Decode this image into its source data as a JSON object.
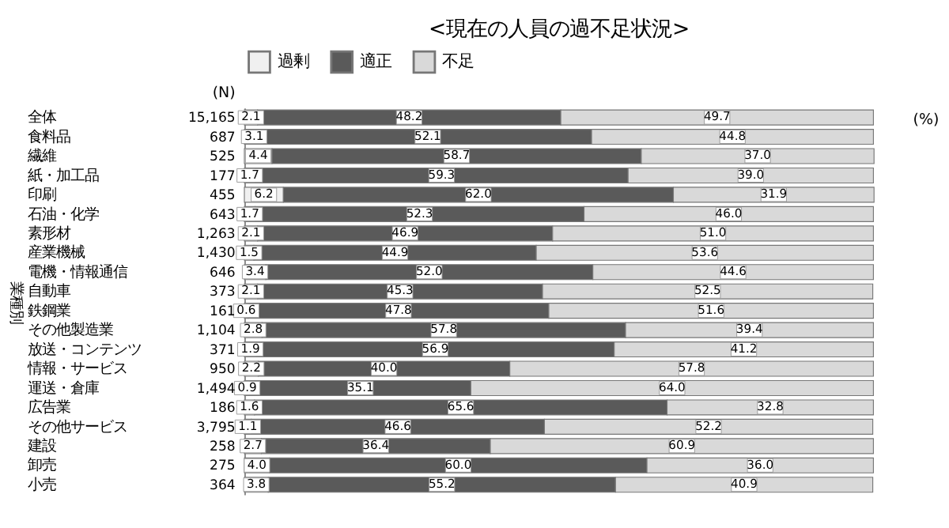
{
  "chart_data": {
    "type": "bar",
    "orientation": "horizontal",
    "stacked": true,
    "title": "<現在の人員の過不足状況>",
    "categories": [
      "全体",
      "食料品",
      "繊維",
      "紙・加工品",
      "印刷",
      "石油・化学",
      "素形材",
      "産業機械",
      "電機・情報通信",
      "自動車",
      "鉄鋼業",
      "その他製造業",
      "放送・コンテンツ",
      "情報・サービス",
      "運送・倉庫",
      "広告業",
      "その他サービス",
      "建設",
      "卸売",
      "小売"
    ],
    "y2_categories": [
      "15,165",
      "687",
      "525",
      "177",
      "455",
      "643",
      "1,263",
      "1,430",
      "646",
      "373",
      "161",
      "1,104",
      "371",
      "950",
      "1,494",
      "186",
      "3,795",
      "258",
      "275",
      "364"
    ],
    "series": [
      {
        "name": "過剰",
        "color": "#f0f0f0",
        "values": [
          2.1,
          3.1,
          4.4,
          1.7,
          6.2,
          1.7,
          2.1,
          1.5,
          3.4,
          2.1,
          0.6,
          2.8,
          1.9,
          2.2,
          0.9,
          1.6,
          1.1,
          2.7,
          4.0,
          3.8
        ],
        "value_labels": [
          "2.1",
          "3.1",
          "4.4",
          "1.7",
          "6.2",
          "1.7",
          "2.1",
          "1.5",
          "3.4",
          "2.1",
          "0.6",
          "2.8",
          "1.9",
          "2.2",
          "0.9",
          "1.6",
          "1.1",
          "2.7",
          "4.0",
          "3.8"
        ]
      },
      {
        "name": "適正",
        "color": "#5a5a5a",
        "values": [
          48.2,
          52.1,
          58.7,
          59.3,
          62.0,
          52.3,
          46.9,
          44.9,
          52.0,
          45.3,
          47.8,
          57.8,
          56.9,
          40.0,
          35.1,
          65.6,
          46.6,
          36.4,
          60.0,
          55.2
        ],
        "value_labels": [
          "48.2",
          "52.1",
          "58.7",
          "59.3",
          "62.0",
          "52.3",
          "46.9",
          "44.9",
          "52.0",
          "45.3",
          "47.8",
          "57.8",
          "56.9",
          "40.0",
          "35.1",
          "65.6",
          "46.6",
          "36.4",
          "60.0",
          "55.2"
        ]
      },
      {
        "name": "不足",
        "color": "#d9d9d9",
        "values": [
          49.7,
          44.8,
          37.0,
          39.0,
          31.9,
          46.0,
          51.0,
          53.6,
          44.6,
          52.5,
          51.6,
          39.4,
          41.2,
          57.8,
          64.0,
          32.8,
          52.2,
          60.9,
          36.0,
          40.9
        ],
        "value_labels": [
          "49.7",
          "44.8",
          "37.0",
          "39.0",
          "31.9",
          "46.0",
          "51.0",
          "53.6",
          "44.6",
          "52.5",
          "51.6",
          "39.4",
          "41.2",
          "57.8",
          "64.0",
          "32.8",
          "52.2",
          "60.9",
          "36.0",
          "40.9"
        ]
      }
    ],
    "legend": "top",
    "tick_labels": "y",
    "annotations": [
      "(N)",
      "(%)",
      "業種別"
    ]
  }
}
